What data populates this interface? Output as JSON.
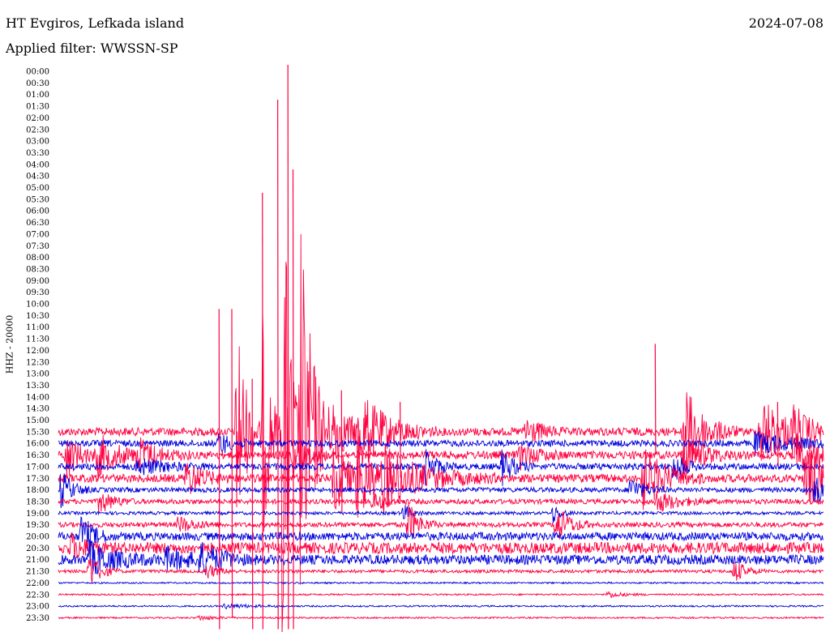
{
  "header": {
    "station": "HT Evgiros, Lefkada island",
    "date": "2024-07-08",
    "filter": "Applied filter: WWSSN-SP"
  },
  "chart_data": {
    "type": "line",
    "title": "HT Evgiros, Lefkada island",
    "subtitle": "Applied filter: WWSSN-SP",
    "date": "2024-07-08",
    "ylabel": "HHZ - 20000",
    "xlabel": "",
    "x_range_minutes": [
      0,
      30
    ],
    "grid": false,
    "colors": {
      "red": "#ff0040",
      "blue": "#0000dd"
    },
    "row_labels": [
      "00:00",
      "00:30",
      "01:00",
      "01:30",
      "02:00",
      "02:30",
      "03:00",
      "03:30",
      "04:00",
      "04:30",
      "05:00",
      "05:30",
      "06:00",
      "06:30",
      "07:00",
      "07:30",
      "08:00",
      "08:30",
      "09:00",
      "09:30",
      "10:00",
      "10:30",
      "11:00",
      "11:30",
      "12:00",
      "12:30",
      "13:00",
      "13:30",
      "14:00",
      "14:30",
      "15:00",
      "15:30",
      "16:00",
      "16:30",
      "17:00",
      "17:30",
      "18:00",
      "18:30",
      "19:00",
      "19:30",
      "20:00",
      "20:30",
      "21:00",
      "21:30",
      "22:00",
      "22:30",
      "23:00",
      "23:30"
    ],
    "traces": [
      {
        "row": "15:30",
        "color": "red",
        "noise": 5,
        "events": [
          {
            "t": 7,
            "amp": 180,
            "w": 0.3
          },
          {
            "t": 8,
            "amp": 150,
            "w": 0.3
          },
          {
            "t": 8.8,
            "amp": 380,
            "w": 0.25
          },
          {
            "t": 9.5,
            "amp": 250,
            "w": 0.5
          },
          {
            "t": 10.8,
            "amp": 30,
            "w": 1
          },
          {
            "t": 11.8,
            "amp": 40,
            "w": 1
          },
          {
            "t": 18.3,
            "amp": 20,
            "w": 0.5
          },
          {
            "t": 24.5,
            "amp": 60,
            "w": 0.7
          },
          {
            "t": 27.5,
            "amp": 45,
            "w": 1
          },
          {
            "t": 28.8,
            "amp": 25,
            "w": 0.5
          }
        ]
      },
      {
        "row": "16:00",
        "color": "blue",
        "noise": 4,
        "events": [
          {
            "t": 6.3,
            "amp": 15,
            "w": 0.4
          },
          {
            "t": 27.3,
            "amp": 12,
            "w": 1.5
          }
        ]
      },
      {
        "row": "16:30",
        "color": "red",
        "noise": 5,
        "events": [
          {
            "t": 0.3,
            "amp": 28,
            "w": 0.5
          },
          {
            "t": 1.5,
            "amp": 25,
            "w": 0.8
          },
          {
            "t": 3.1,
            "amp": 20,
            "w": 0.7
          },
          {
            "t": 9.2,
            "amp": 25,
            "w": 0.5
          },
          {
            "t": 18.1,
            "amp": 15,
            "w": 0.6
          },
          {
            "t": 24.5,
            "amp": 28,
            "w": 0.7
          },
          {
            "t": 28.9,
            "amp": 25,
            "w": 0.8
          }
        ]
      },
      {
        "row": "17:00",
        "color": "blue",
        "noise": 4,
        "events": [
          {
            "t": 3.1,
            "amp": 10,
            "w": 1
          },
          {
            "t": 14.4,
            "amp": 22,
            "w": 0.4
          },
          {
            "t": 17.4,
            "amp": 22,
            "w": 0.4
          },
          {
            "t": 24.1,
            "amp": 20,
            "w": 0.4
          }
        ]
      },
      {
        "row": "17:30",
        "color": "red",
        "noise": 5,
        "events": [
          {
            "t": 5,
            "amp": 22,
            "w": 0.6
          },
          {
            "t": 10.8,
            "amp": 45,
            "w": 0.6
          },
          {
            "t": 11.7,
            "amp": 50,
            "w": 0.6
          },
          {
            "t": 12.7,
            "amp": 35,
            "w": 1.5
          },
          {
            "t": 22.9,
            "amp": 40,
            "w": 0.8
          },
          {
            "t": 29.3,
            "amp": 40,
            "w": 0.7
          }
        ]
      },
      {
        "row": "18:00",
        "color": "blue",
        "noise": 3,
        "events": [
          {
            "t": 0.1,
            "amp": 25,
            "w": 0.4
          },
          {
            "t": 22.4,
            "amp": 16,
            "w": 0.5
          },
          {
            "t": 29.6,
            "amp": 16,
            "w": 1
          }
        ]
      },
      {
        "row": "18:30",
        "color": "red",
        "noise": 3,
        "events": [
          {
            "t": 1.6,
            "amp": 15,
            "w": 0.5
          },
          {
            "t": 12.3,
            "amp": 12,
            "w": 0.5
          },
          {
            "t": 23.4,
            "amp": 14,
            "w": 0.8
          }
        ]
      },
      {
        "row": "19:00",
        "color": "blue",
        "noise": 2,
        "events": [
          {
            "t": 13.5,
            "amp": 12,
            "w": 0.3
          },
          {
            "t": 19.4,
            "amp": 12,
            "w": 0.3
          }
        ]
      },
      {
        "row": "19:30",
        "color": "red",
        "noise": 3,
        "events": [
          {
            "t": 4.7,
            "amp": 10,
            "w": 0.6
          },
          {
            "t": 13.7,
            "amp": 28,
            "w": 0.4
          },
          {
            "t": 19.5,
            "amp": 25,
            "w": 0.5
          }
        ]
      },
      {
        "row": "20:00",
        "color": "blue",
        "noise": 5,
        "events": [
          {
            "t": 0.9,
            "amp": 28,
            "w": 0.4
          }
        ]
      },
      {
        "row": "20:30",
        "color": "red",
        "noise": 7,
        "events": [
          {
            "t": 0.5,
            "amp": 15,
            "w": 0.5
          }
        ]
      },
      {
        "row": "21:00",
        "color": "blue",
        "noise": 6,
        "events": [
          {
            "t": 1.2,
            "amp": 20,
            "w": 1
          },
          {
            "t": 4.2,
            "amp": 12,
            "w": 1
          },
          {
            "t": 5.5,
            "amp": 16,
            "w": 0.8
          }
        ]
      },
      {
        "row": "21:30",
        "color": "red",
        "noise": 2,
        "events": [
          {
            "t": 1.2,
            "amp": 25,
            "w": 0.4
          },
          {
            "t": 5.8,
            "amp": 10,
            "w": 0.4
          },
          {
            "t": 26.5,
            "amp": 15,
            "w": 0.4
          }
        ]
      },
      {
        "row": "22:00",
        "color": "blue",
        "noise": 1,
        "events": []
      },
      {
        "row": "22:30",
        "color": "red",
        "noise": 1,
        "events": [
          {
            "t": 21.5,
            "amp": 4,
            "w": 0.6
          }
        ]
      },
      {
        "row": "23:00",
        "color": "blue",
        "noise": 1,
        "events": [
          {
            "t": 6.5,
            "amp": 3,
            "w": 1
          }
        ]
      },
      {
        "row": "23:30",
        "color": "red",
        "noise": 1,
        "events": [
          {
            "t": 5.5,
            "amp": 3,
            "w": 0.6
          }
        ]
      }
    ],
    "spikes": [
      {
        "t": 6.3,
        "up_row": "10:30",
        "down_row": "23:30",
        "color": "red"
      },
      {
        "t": 6.8,
        "up_row": "10:30",
        "down_row": "23:00",
        "color": "red"
      },
      {
        "t": 7.6,
        "up_row": "13:30",
        "down_row": "23:30",
        "color": "red"
      },
      {
        "t": 8.0,
        "up_row": "05:30",
        "down_row": "23:30",
        "color": "red"
      },
      {
        "t": 8.6,
        "up_row": "01:30",
        "down_row": "23:30",
        "color": "red"
      },
      {
        "t": 9.0,
        "up_row": "00:00",
        "down_row": "23:30",
        "color": "red"
      },
      {
        "t": 9.2,
        "up_row": "04:30",
        "down_row": "23:30",
        "color": "red"
      },
      {
        "t": 11.1,
        "up_row": "14:00",
        "down_row": "18:30",
        "color": "red"
      },
      {
        "t": 13.4,
        "up_row": "14:30",
        "down_row": "17:00",
        "color": "red"
      },
      {
        "t": 23.4,
        "up_row": "12:00",
        "down_row": "16:00",
        "color": "red"
      },
      {
        "t": 28.2,
        "up_row": "14:30",
        "down_row": "16:30",
        "color": "red"
      }
    ]
  }
}
